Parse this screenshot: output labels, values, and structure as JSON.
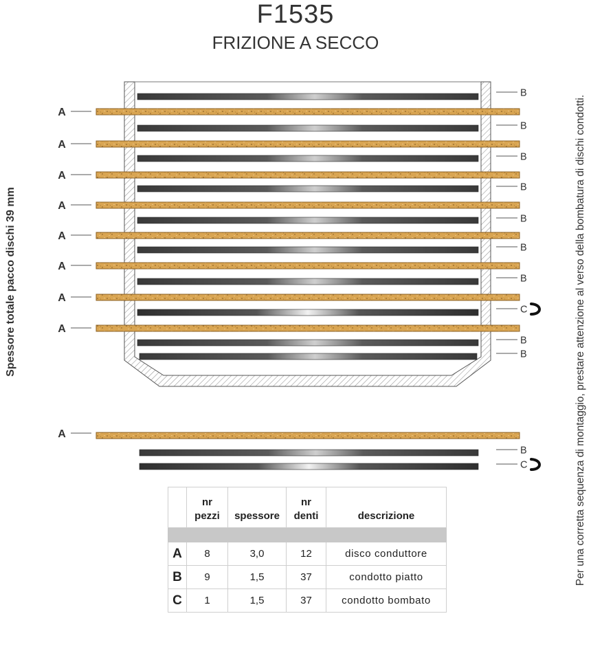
{
  "title": "F1535",
  "subtitle": "FRIZIONE A SECCO",
  "side_label": "Spessore totale pacco dischi 39 mm",
  "right_note": "Per una corretta sequenza di montaggio, prestare attenzione al verso della bombatura di dischi condotti.",
  "stack_labels_left": [
    "A",
    "A",
    "A",
    "A",
    "A",
    "A",
    "A",
    "A"
  ],
  "stack_labels_right": [
    "B",
    "B",
    "B",
    "B",
    "B",
    "B",
    "B",
    "C",
    "B",
    "B"
  ],
  "loose_labels": {
    "left": "A",
    "right": [
      "B",
      "C"
    ]
  },
  "colors": {
    "friction_disc": "#d9a552",
    "steel_disc": "#4a4a4a",
    "text": "#333333"
  },
  "table": {
    "headers": [
      {
        "line1": "",
        "line2": ""
      },
      {
        "line1": "nr",
        "line2": "pezzi"
      },
      {
        "line1": "",
        "line2": "spessore"
      },
      {
        "line1": "nr",
        "line2": "denti"
      },
      {
        "line1": "",
        "line2": "descrizione"
      }
    ],
    "rows": [
      {
        "code": "A",
        "pezzi": "8",
        "spessore": "3,0",
        "denti": "12",
        "descrizione": "disco conduttore"
      },
      {
        "code": "B",
        "pezzi": "9",
        "spessore": "1,5",
        "denti": "37",
        "descrizione": "condotto piatto"
      },
      {
        "code": "C",
        "pezzi": "1",
        "spessore": "1,5",
        "denti": "37",
        "descrizione": "condotto bombato"
      }
    ]
  }
}
